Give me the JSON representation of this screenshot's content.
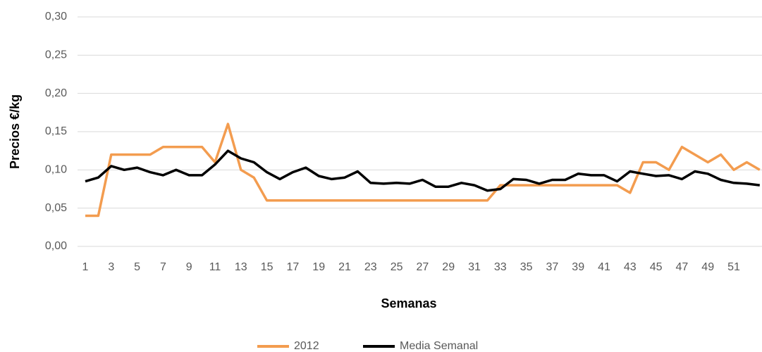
{
  "chart_data": {
    "type": "line",
    "x_label": "Semanas",
    "y_label": "Precios €/kg",
    "categories": [
      "1",
      null,
      "3",
      null,
      "5",
      null,
      "7",
      null,
      "9",
      null,
      "11",
      null,
      "13",
      null,
      "15",
      null,
      "17",
      null,
      "19",
      null,
      "21",
      null,
      "23",
      null,
      "25",
      null,
      "27",
      null,
      "29",
      null,
      "31",
      null,
      "33",
      null,
      "35",
      null,
      "37",
      null,
      "39",
      null,
      "41",
      null,
      "43",
      null,
      "45",
      null,
      "47",
      null,
      "49",
      null,
      "51",
      null,
      null
    ],
    "series": [
      {
        "name": "2012",
        "color": "#f39c4f",
        "values": [
          0.04,
          0.04,
          0.12,
          0.12,
          0.12,
          0.12,
          0.13,
          0.13,
          0.13,
          0.13,
          0.11,
          0.16,
          0.1,
          0.09,
          0.06,
          0.06,
          0.06,
          0.06,
          0.06,
          0.06,
          0.06,
          0.06,
          0.06,
          0.06,
          0.06,
          0.06,
          0.06,
          0.06,
          0.06,
          0.06,
          0.06,
          0.06,
          0.08,
          0.08,
          0.08,
          0.08,
          0.08,
          0.08,
          0.08,
          0.08,
          0.08,
          0.08,
          0.07,
          0.11,
          0.11,
          0.1,
          0.13,
          0.12,
          0.11,
          0.12,
          0.1,
          0.11,
          0.1
        ]
      },
      {
        "name": "Media Semanal",
        "color": "#000000",
        "values": [
          0.085,
          0.09,
          0.105,
          0.1,
          0.103,
          0.097,
          0.093,
          0.1,
          0.093,
          0.093,
          0.107,
          0.125,
          0.115,
          0.11,
          0.097,
          0.088,
          0.097,
          0.103,
          0.092,
          0.088,
          0.09,
          0.098,
          0.083,
          0.082,
          0.083,
          0.082,
          0.087,
          0.078,
          0.078,
          0.083,
          0.08,
          0.073,
          0.075,
          0.088,
          0.087,
          0.082,
          0.087,
          0.087,
          0.095,
          0.093,
          0.093,
          0.085,
          0.098,
          0.095,
          0.092,
          0.093,
          0.088,
          0.098,
          0.095,
          0.087,
          0.083,
          0.082,
          0.08
        ]
      }
    ],
    "ylim": [
      0,
      0.3
    ],
    "yticks": [
      {
        "value": 0,
        "label": "0,00"
      },
      {
        "value": 0.05,
        "label": "0,05"
      },
      {
        "value": 0.1,
        "label": "0,10"
      },
      {
        "value": 0.15,
        "label": "0,15"
      },
      {
        "value": 0.2,
        "label": "0,20"
      },
      {
        "value": 0.25,
        "label": "0,25"
      },
      {
        "value": 0.3,
        "label": "0,30"
      }
    ],
    "grid": true,
    "legend": "bottom"
  }
}
